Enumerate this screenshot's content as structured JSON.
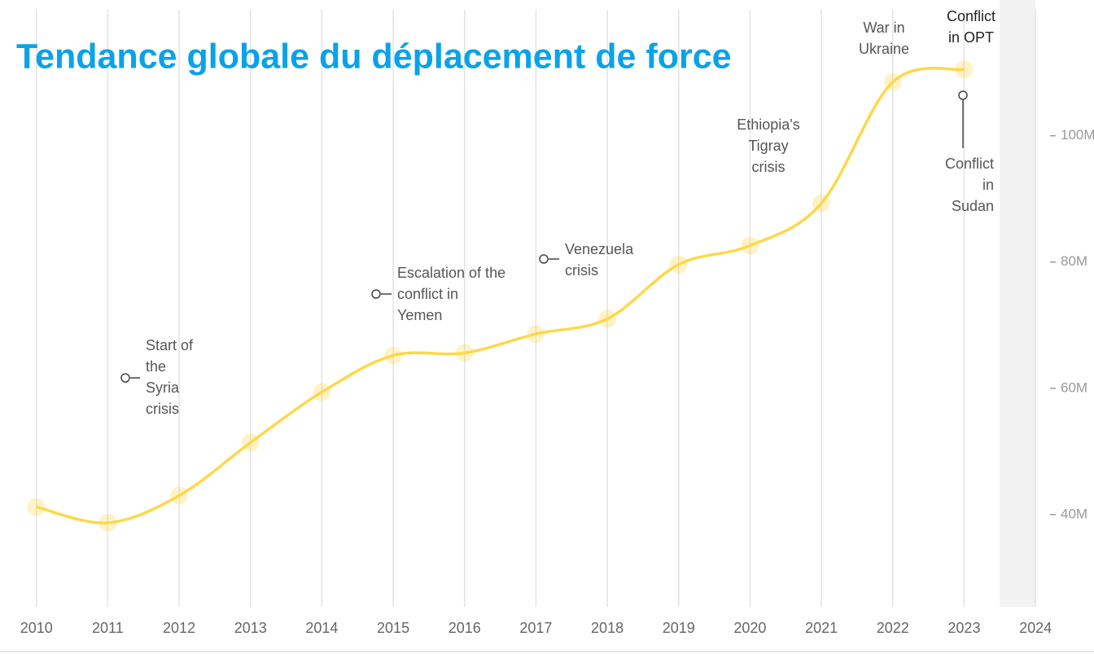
{
  "chart_data": {
    "type": "line",
    "title": "Tendance globale du déplacement de force",
    "x": [
      2010,
      2011,
      2012,
      2013,
      2014,
      2015,
      2016,
      2017,
      2018,
      2019,
      2020,
      2021,
      2022,
      2023
    ],
    "values": [
      41.2,
      38.7,
      43.0,
      51.4,
      59.4,
      65.2,
      65.6,
      68.6,
      71.0,
      79.6,
      82.6,
      89.3,
      108.5,
      110.5
    ],
    "color": "#fdd84a",
    "xlim": [
      2009.49,
      2024.82
    ],
    "xticks": [
      2010,
      2011,
      2012,
      2013,
      2014,
      2015,
      2016,
      2017,
      2018,
      2019,
      2020,
      2021,
      2022,
      2023,
      2024
    ],
    "ylim": [
      25.4,
      121.5
    ],
    "yticks": [
      {
        "value": 40,
        "label": "40M"
      },
      {
        "value": 60,
        "label": "60M"
      },
      {
        "value": 80,
        "label": "80M"
      },
      {
        "value": 100,
        "label": "100M"
      }
    ],
    "grid": true,
    "shaded_xrange": [
      2023.5,
      2024
    ],
    "annotations": [
      {
        "lines": [
          "Start of",
          "the",
          "Syria",
          "crisis"
        ]
      },
      {
        "lines": [
          "Escalation of the",
          "conflict in",
          "Yemen"
        ]
      },
      {
        "lines": [
          "Venezuela",
          "crisis"
        ]
      },
      {
        "lines": [
          "Ethiopia's",
          "Tigray",
          "crisis"
        ]
      },
      {
        "lines": [
          "War in",
          "Ukraine"
        ]
      },
      {
        "lines": [
          "Conflict",
          "in OPT"
        ]
      },
      {
        "lines": [
          "Conflict",
          "in",
          "Sudan"
        ]
      }
    ]
  }
}
